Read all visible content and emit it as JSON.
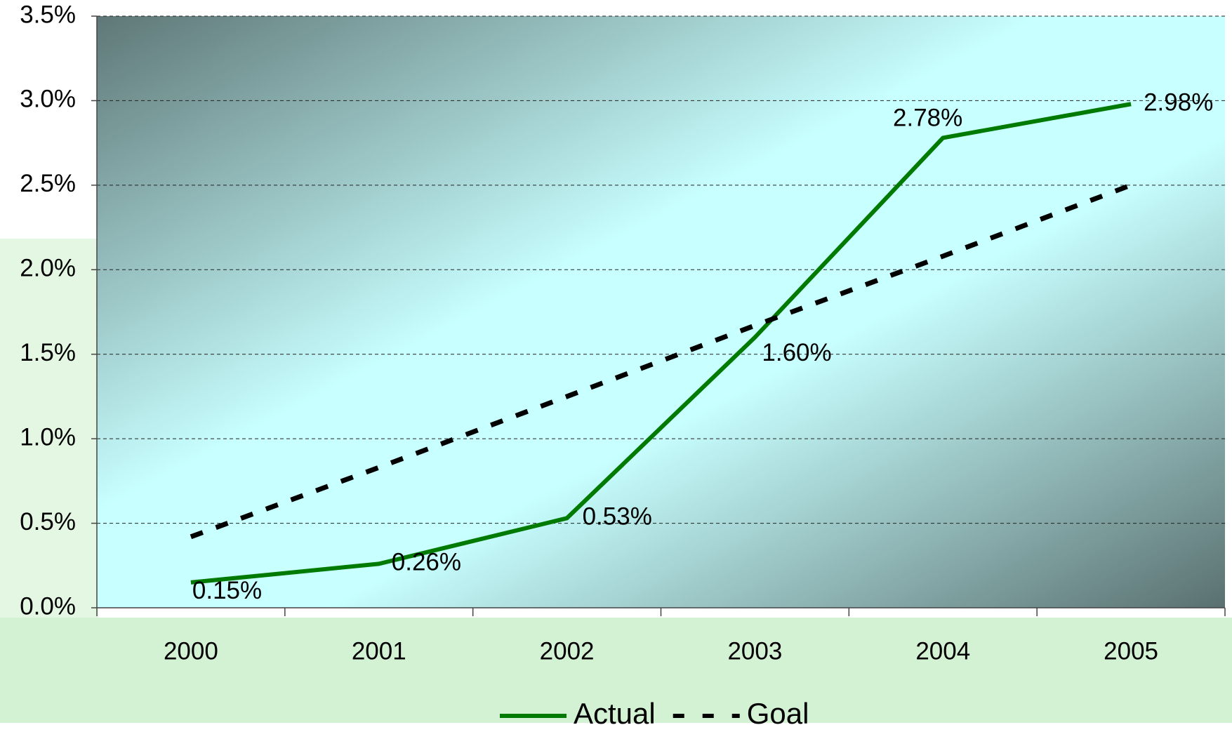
{
  "chart_data": {
    "type": "line",
    "categories": [
      "2000",
      "2001",
      "2002",
      "2003",
      "2004",
      "2005"
    ],
    "series": [
      {
        "name": "Actual",
        "color": "#007a00",
        "style": "solid",
        "values": [
          0.15,
          0.26,
          0.53,
          1.6,
          2.78,
          2.98
        ],
        "value_labels": [
          "0.15%",
          "0.26%",
          "0.53%",
          "1.60%",
          "2.78%",
          "2.98%"
        ]
      },
      {
        "name": "Goal",
        "color": "#000000",
        "style": "dashed",
        "values": [
          0.42,
          0.83,
          1.25,
          1.67,
          2.08,
          2.5
        ]
      }
    ],
    "ylim": [
      0,
      3.5
    ],
    "yticks": [
      {
        "value": 0,
        "label": "0.0%"
      },
      {
        "value": 0.5,
        "label": "0.5%"
      },
      {
        "value": 1,
        "label": "1.0%"
      },
      {
        "value": 1.5,
        "label": "1.5%"
      },
      {
        "value": 2,
        "label": "2.0%"
      },
      {
        "value": 2.5,
        "label": "2.5%"
      },
      {
        "value": 3,
        "label": "3.0%"
      },
      {
        "value": 3.5,
        "label": "3.5%"
      }
    ],
    "grid": true,
    "legend": "bottom"
  }
}
